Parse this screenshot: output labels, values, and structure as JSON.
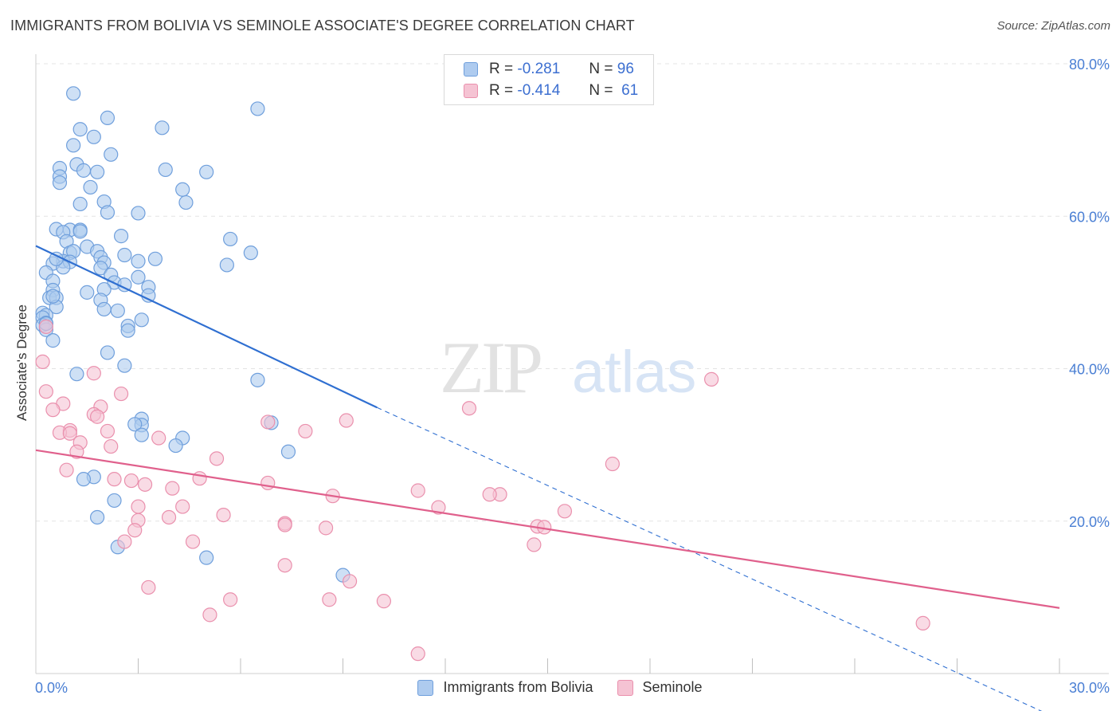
{
  "title": "IMMIGRANTS FROM BOLIVIA VS SEMINOLE ASSOCIATE'S DEGREE CORRELATION CHART",
  "source": "Source: ZipAtlas.com",
  "watermark": {
    "zip": "ZIP",
    "atlas": "atlas"
  },
  "legend": {
    "rows": [
      {
        "r_label": "R =",
        "r_value": "-0.281",
        "n_label": "N =",
        "n_value": "96"
      },
      {
        "r_label": "R =",
        "r_value": "-0.414",
        "n_label": "N =",
        "n_value": "61"
      }
    ]
  },
  "colors": {
    "blue_fill": "#aecbef",
    "blue_stroke": "#6f9fdc",
    "blue_line": "#2f6fd1",
    "pink_fill": "#f5c3d3",
    "pink_stroke": "#ea90ad",
    "pink_line": "#e0608c",
    "tick_text": "#4a7fd4",
    "grid": "#e4e4e4"
  },
  "chart_data": {
    "type": "scatter",
    "title": "IMMIGRANTS FROM BOLIVIA VS SEMINOLE ASSOCIATE'S DEGREE CORRELATION CHART",
    "xlabel": "",
    "ylabel": "Associate's Degree",
    "xlim": [
      0,
      30
    ],
    "ylim": [
      0,
      80
    ],
    "x_tick_labels": [
      "0.0%",
      "30.0%"
    ],
    "y_tick_labels": [
      "20.0%",
      "40.0%",
      "60.0%",
      "80.0%"
    ],
    "y_ticks": [
      20,
      40,
      60,
      80
    ],
    "grid": true,
    "legend_position": "bottom",
    "series": [
      {
        "name": "Immigrants from Bolivia",
        "color": "#aecbef",
        "trend": {
          "x0": 0.0,
          "y0": 56.1,
          "x1": 10.0,
          "y1": 34.9,
          "dash_to_x": 29.5,
          "dash_to_y": -5.0
        },
        "points": [
          [
            1.1,
            76.1
          ],
          [
            6.5,
            74.1
          ],
          [
            2.1,
            72.9
          ],
          [
            1.3,
            71.4
          ],
          [
            3.7,
            71.6
          ],
          [
            1.7,
            70.4
          ],
          [
            1.1,
            69.3
          ],
          [
            2.2,
            68.1
          ],
          [
            1.2,
            66.8
          ],
          [
            0.7,
            66.3
          ],
          [
            1.4,
            66.0
          ],
          [
            3.8,
            66.1
          ],
          [
            5.0,
            65.8
          ],
          [
            1.8,
            65.8
          ],
          [
            0.7,
            65.2
          ],
          [
            0.7,
            64.4
          ],
          [
            1.6,
            63.8
          ],
          [
            4.3,
            63.5
          ],
          [
            2.0,
            61.9
          ],
          [
            1.3,
            61.6
          ],
          [
            4.4,
            61.8
          ],
          [
            2.1,
            60.5
          ],
          [
            3.0,
            60.4
          ],
          [
            0.6,
            58.3
          ],
          [
            1.0,
            58.2
          ],
          [
            1.3,
            58.2
          ],
          [
            1.3,
            58.0
          ],
          [
            0.8,
            57.9
          ],
          [
            2.5,
            57.4
          ],
          [
            5.7,
            57.0
          ],
          [
            0.9,
            56.7
          ],
          [
            1.5,
            56.0
          ],
          [
            1.8,
            55.4
          ],
          [
            1.0,
            55.2
          ],
          [
            1.1,
            55.4
          ],
          [
            6.3,
            55.2
          ],
          [
            2.6,
            54.9
          ],
          [
            1.9,
            54.6
          ],
          [
            3.5,
            54.4
          ],
          [
            0.8,
            54.1
          ],
          [
            1.0,
            54.0
          ],
          [
            0.5,
            53.8
          ],
          [
            2.0,
            53.9
          ],
          [
            3.0,
            54.1
          ],
          [
            5.6,
            53.6
          ],
          [
            1.9,
            53.2
          ],
          [
            0.8,
            53.3
          ],
          [
            0.3,
            52.6
          ],
          [
            2.2,
            52.3
          ],
          [
            3.0,
            52.0
          ],
          [
            0.5,
            51.5
          ],
          [
            2.3,
            51.3
          ],
          [
            2.6,
            51.0
          ],
          [
            2.0,
            50.4
          ],
          [
            3.3,
            50.7
          ],
          [
            1.5,
            50.0
          ],
          [
            0.5,
            50.3
          ],
          [
            0.4,
            49.3
          ],
          [
            0.6,
            49.3
          ],
          [
            1.9,
            49.0
          ],
          [
            3.3,
            49.6
          ],
          [
            0.6,
            48.1
          ],
          [
            2.0,
            47.8
          ],
          [
            0.2,
            47.3
          ],
          [
            2.4,
            47.6
          ],
          [
            0.3,
            47.0
          ],
          [
            3.1,
            46.4
          ],
          [
            0.2,
            46.7
          ],
          [
            0.3,
            46.0
          ],
          [
            2.7,
            45.6
          ],
          [
            0.2,
            45.7
          ],
          [
            2.7,
            45.0
          ],
          [
            0.3,
            45.1
          ],
          [
            0.5,
            43.7
          ],
          [
            2.1,
            42.1
          ],
          [
            2.6,
            40.4
          ],
          [
            1.2,
            39.3
          ],
          [
            6.5,
            38.5
          ],
          [
            3.1,
            33.4
          ],
          [
            3.1,
            32.6
          ],
          [
            6.9,
            32.9
          ],
          [
            2.9,
            32.7
          ],
          [
            3.1,
            31.3
          ],
          [
            4.3,
            30.9
          ],
          [
            4.1,
            29.9
          ],
          [
            7.4,
            29.1
          ],
          [
            1.7,
            25.8
          ],
          [
            1.4,
            25.5
          ],
          [
            2.3,
            22.7
          ],
          [
            1.8,
            20.5
          ],
          [
            2.4,
            16.6
          ],
          [
            5.0,
            15.2
          ],
          [
            9.0,
            12.9
          ],
          [
            0.3,
            45.9
          ],
          [
            0.5,
            49.5
          ],
          [
            0.6,
            54.4
          ]
        ]
      },
      {
        "name": "Seminole",
        "color": "#f5c3d3",
        "trend": {
          "x0": 0.0,
          "y0": 29.3,
          "x1": 30.0,
          "y1": 8.6
        },
        "points": [
          [
            0.3,
            45.5
          ],
          [
            0.2,
            40.9
          ],
          [
            1.7,
            39.4
          ],
          [
            2.5,
            36.7
          ],
          [
            0.3,
            37.0
          ],
          [
            0.8,
            35.4
          ],
          [
            0.5,
            34.6
          ],
          [
            1.9,
            35.0
          ],
          [
            12.7,
            34.8
          ],
          [
            1.7,
            34.0
          ],
          [
            1.8,
            33.7
          ],
          [
            9.1,
            33.2
          ],
          [
            6.8,
            33.0
          ],
          [
            1.0,
            31.9
          ],
          [
            0.7,
            31.6
          ],
          [
            1.0,
            31.5
          ],
          [
            7.9,
            31.8
          ],
          [
            2.1,
            31.8
          ],
          [
            3.6,
            30.9
          ],
          [
            1.3,
            30.3
          ],
          [
            2.2,
            29.8
          ],
          [
            1.2,
            29.1
          ],
          [
            16.9,
            27.5
          ],
          [
            5.3,
            28.2
          ],
          [
            19.8,
            38.6
          ],
          [
            0.9,
            26.7
          ],
          [
            2.8,
            25.3
          ],
          [
            2.3,
            25.5
          ],
          [
            4.8,
            25.6
          ],
          [
            6.8,
            25.0
          ],
          [
            3.2,
            24.8
          ],
          [
            4.0,
            24.3
          ],
          [
            11.2,
            24.0
          ],
          [
            8.7,
            23.3
          ],
          [
            13.6,
            23.5
          ],
          [
            13.3,
            23.5
          ],
          [
            3.0,
            21.9
          ],
          [
            4.3,
            21.9
          ],
          [
            11.8,
            21.8
          ],
          [
            15.5,
            21.3
          ],
          [
            5.5,
            20.8
          ],
          [
            3.9,
            20.5
          ],
          [
            3.0,
            20.1
          ],
          [
            7.3,
            19.7
          ],
          [
            7.3,
            19.5
          ],
          [
            8.5,
            19.1
          ],
          [
            14.7,
            19.3
          ],
          [
            14.9,
            19.2
          ],
          [
            2.9,
            18.8
          ],
          [
            2.6,
            17.3
          ],
          [
            4.6,
            17.3
          ],
          [
            14.6,
            16.9
          ],
          [
            7.3,
            14.2
          ],
          [
            9.2,
            12.1
          ],
          [
            3.3,
            11.3
          ],
          [
            5.7,
            9.7
          ],
          [
            8.6,
            9.7
          ],
          [
            10.2,
            9.5
          ],
          [
            5.1,
            7.7
          ],
          [
            26.0,
            6.6
          ],
          [
            11.2,
            2.6
          ]
        ]
      }
    ]
  },
  "bottom_legend": [
    "Immigrants from Bolivia",
    "Seminole"
  ]
}
